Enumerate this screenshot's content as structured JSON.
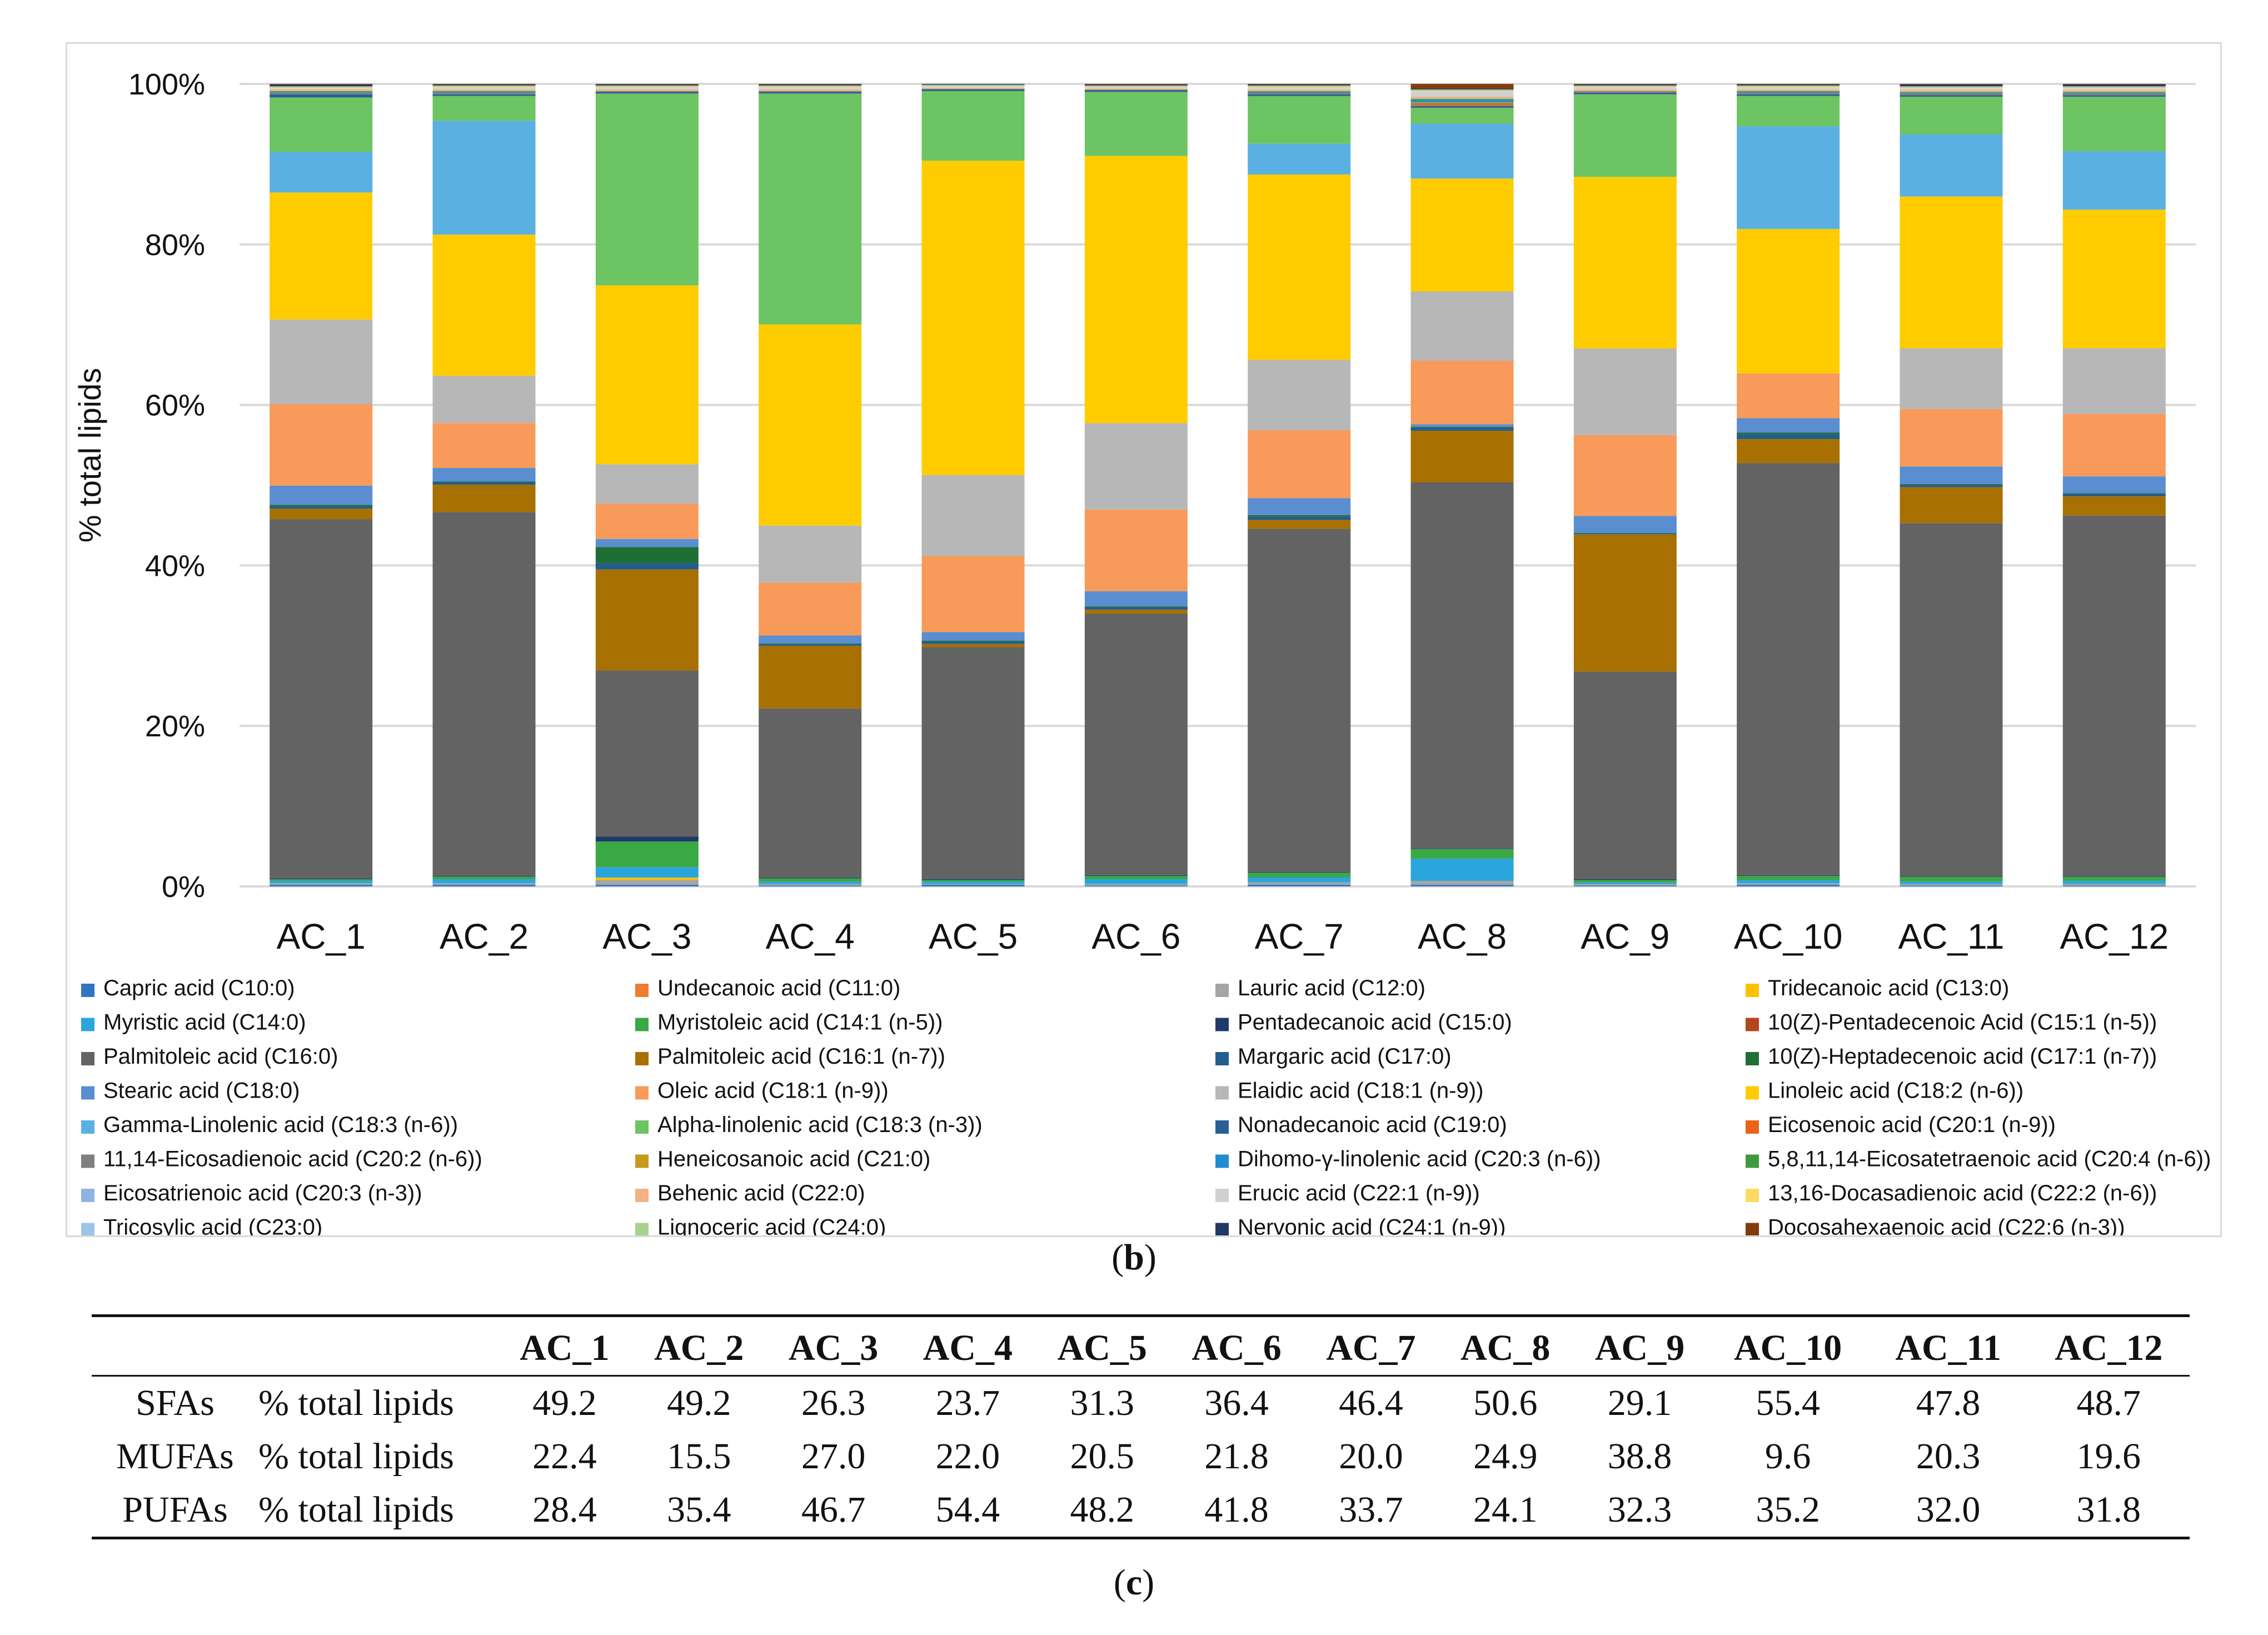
{
  "chart_data": {
    "type": "bar",
    "stacked": true,
    "percent": true,
    "caption": "b",
    "xlabel": "",
    "ylabel": "% total lipids",
    "ylim": [
      0,
      100
    ],
    "yticks": [
      "0%",
      "20%",
      "40%",
      "60%",
      "80%",
      "100%"
    ],
    "grid": true,
    "legend_position": "bottom",
    "categories": [
      "AC_1",
      "AC_2",
      "AC_3",
      "AC_4",
      "AC_5",
      "AC_6",
      "AC_7",
      "AC_8",
      "AC_9",
      "AC_10",
      "AC_11",
      "AC_12"
    ],
    "series": [
      {
        "name": "Capric acid (C10:0)",
        "color": "#2e75c6",
        "values": [
          0.2,
          0.2,
          0.2,
          0.1,
          0.2,
          0.1,
          0.2,
          0.2,
          0.1,
          0.2,
          0.1,
          0.1
        ]
      },
      {
        "name": "Undecanoic acid (C11:0)",
        "color": "#ed7d31",
        "values": [
          0.0,
          0.0,
          0.0,
          0.0,
          0.0,
          0.0,
          0.0,
          0.0,
          0.0,
          0.0,
          0.0,
          0.0
        ]
      },
      {
        "name": "Lauric acid (C12:0)",
        "color": "#a5a5a5",
        "values": [
          0.2,
          0.2,
          0.6,
          0.2,
          0.1,
          0.2,
          0.3,
          0.5,
          0.2,
          0.2,
          0.2,
          0.2
        ]
      },
      {
        "name": "Tridecanoic acid (C13:0)",
        "color": "#ffc000",
        "values": [
          0.0,
          0.0,
          0.3,
          0.0,
          0.0,
          0.0,
          0.0,
          0.0,
          0.0,
          0.0,
          0.0,
          0.0
        ]
      },
      {
        "name": "Myristic acid (C14:0)",
        "color": "#2aa6dc",
        "values": [
          0.3,
          0.5,
          1.3,
          0.3,
          0.3,
          0.6,
          0.6,
          2.8,
          0.2,
          0.4,
          0.3,
          0.4
        ]
      },
      {
        "name": "Myristoleic acid (C14:1 (n-5))",
        "color": "#3aa844",
        "values": [
          0.2,
          0.3,
          3.2,
          0.4,
          0.2,
          0.4,
          0.6,
          1.2,
          0.3,
          0.5,
          0.6,
          0.5
        ]
      },
      {
        "name": "Pentadecanoic acid (C15:0)",
        "color": "#1f3a68",
        "values": [
          0.1,
          0.1,
          0.6,
          0.1,
          0.1,
          0.1,
          0.1,
          0.1,
          0.1,
          0.1,
          0.1,
          0.1
        ]
      },
      {
        "name": "10(Z)-Pentadecenoic Acid (C15:1 (n-5))",
        "color": "#b5451b",
        "values": [
          0.0,
          0.0,
          0.0,
          0.0,
          0.0,
          0.0,
          0.0,
          0.0,
          0.0,
          0.0,
          0.0,
          0.0
        ]
      },
      {
        "name": "Palmitoleic acid (C16:0)",
        "color": "#636363",
        "values": [
          45.0,
          45.4,
          20.7,
          21.1,
          29.0,
          32.7,
          42.4,
          46.0,
          25.9,
          51.4,
          44.2,
          45.0
        ]
      },
      {
        "name": "Palmitoleic acid (C16:1 (n-7))",
        "color": "#a87000",
        "values": [
          1.3,
          3.4,
          12.6,
          7.8,
          0.4,
          0.5,
          1.1,
          6.5,
          17.1,
          3.0,
          4.5,
          2.4
        ]
      },
      {
        "name": "Margaric acid (C17:0)",
        "color": "#235d8c",
        "values": [
          0.3,
          0.3,
          0.8,
          0.2,
          0.3,
          0.3,
          0.4,
          0.4,
          0.1,
          0.6,
          0.3,
          0.3
        ]
      },
      {
        "name": "10(Z)-Heptadecenoic acid (C17:1 (n-7))",
        "color": "#1f6e34",
        "values": [
          0.2,
          0.1,
          2.0,
          0.1,
          0.1,
          0.1,
          0.2,
          0.1,
          0.1,
          0.2,
          0.1,
          0.1
        ]
      },
      {
        "name": "Stearic acid (C18:0)",
        "color": "#5a8ed0",
        "values": [
          2.4,
          1.7,
          1.0,
          1.0,
          1.1,
          1.9,
          2.1,
          0.3,
          2.1,
          1.8,
          2.2,
          2.1
        ]
      },
      {
        "name": "Oleic acid (C18:1 (n-9))",
        "color": "#f79a5a",
        "values": [
          10.2,
          5.6,
          4.4,
          6.6,
          9.5,
          10.2,
          8.4,
          8.0,
          10.1,
          5.6,
          7.2,
          7.8
        ]
      },
      {
        "name": "Elaidic acid (C18:1 (n-9))",
        "color": "#b7b7b7",
        "values": [
          10.6,
          5.9,
          4.9,
          7.1,
          10.1,
          10.8,
          8.7,
          8.7,
          10.8,
          0.0,
          7.6,
          8.2
        ]
      },
      {
        "name": "Linoleic acid (C18:2 (n-6))",
        "color": "#ffcc00",
        "values": [
          15.9,
          17.6,
          22.3,
          25.1,
          39.3,
          33.4,
          22.9,
          14.2,
          21.4,
          18.0,
          19.0,
          17.3
        ]
      },
      {
        "name": "Gamma-Linolenic acid (C18:3 (n-6))",
        "color": "#5bb0e2",
        "values": [
          5.1,
          14.2,
          0.0,
          0.0,
          0.0,
          0.0,
          3.8,
          6.9,
          0.0,
          12.8,
          7.8,
          7.3
        ]
      },
      {
        "name": "Alpha-linolenic acid (C18:3 (n-3))",
        "color": "#6cc463",
        "values": [
          6.8,
          3.1,
          23.9,
          28.8,
          8.7,
          8.0,
          5.9,
          2.0,
          10.3,
          3.8,
          4.7,
          6.8
        ]
      },
      {
        "name": "Nonadecanoic acid (C19:0)",
        "color": "#2b5f94",
        "values": [
          0.4,
          0.2,
          0.2,
          0.2,
          0.2,
          0.2,
          0.2,
          0.2,
          0.2,
          0.2,
          0.2,
          0.2
        ]
      },
      {
        "name": "Eicosenoic acid (C20:1 (n-9))",
        "color": "#e8641a",
        "values": [
          0.0,
          0.0,
          0.0,
          0.0,
          0.0,
          0.0,
          0.0,
          0.2,
          0.0,
          0.0,
          0.0,
          0.0
        ]
      },
      {
        "name": "11,14-Eicosadienoic acid (C20:2 (n-6))",
        "color": "#7f7f7f",
        "values": [
          0.2,
          0.2,
          0.1,
          0.1,
          0.1,
          0.1,
          0.2,
          0.2,
          0.2,
          0.2,
          0.2,
          0.2
        ]
      },
      {
        "name": "Heneicosanoic acid (C21:0)",
        "color": "#c79a1c",
        "values": [
          0.0,
          0.0,
          0.0,
          0.0,
          0.0,
          0.0,
          0.0,
          0.1,
          0.0,
          0.0,
          0.0,
          0.0
        ]
      },
      {
        "name": "Dihomo-γ-linolenic acid (C20:3 (n-6))",
        "color": "#1f8bd0",
        "values": [
          0.1,
          0.1,
          0.0,
          0.0,
          0.0,
          0.0,
          0.1,
          0.2,
          0.0,
          0.1,
          0.1,
          0.1
        ]
      },
      {
        "name": "5,8,11,14-Eicosatetraenoic acid (C20:4 (n-6))",
        "color": "#3f9a3f",
        "values": [
          0.1,
          0.1,
          0.0,
          0.0,
          0.0,
          0.0,
          0.1,
          0.2,
          0.0,
          0.1,
          0.1,
          0.1
        ]
      },
      {
        "name": "Eicosatrienoic acid (C20:3 (n-3))",
        "color": "#8fb4e3",
        "values": [
          0.0,
          0.0,
          0.0,
          0.0,
          0.0,
          0.0,
          0.0,
          0.1,
          0.0,
          0.0,
          0.0,
          0.0
        ]
      },
      {
        "name": "Behenic acid (C22:0)",
        "color": "#f4b183",
        "values": [
          0.2,
          0.2,
          0.2,
          0.2,
          0.1,
          0.1,
          0.2,
          0.2,
          0.2,
          0.2,
          0.2,
          0.2
        ]
      },
      {
        "name": "Erucic acid (C22:1 (n-9))",
        "color": "#d0d0d0",
        "values": [
          0.1,
          0.2,
          0.2,
          0.2,
          0.1,
          0.1,
          0.2,
          0.6,
          0.2,
          0.2,
          0.2,
          0.2
        ]
      },
      {
        "name": "13,16-Docasadienoic acid (C22:2 (n-6))",
        "color": "#ffd966",
        "values": [
          0.1,
          0.1,
          0.1,
          0.1,
          0.1,
          0.1,
          0.1,
          0.1,
          0.1,
          0.1,
          0.1,
          0.1
        ]
      },
      {
        "name": "Tricosylic acid (C23:0)",
        "color": "#9dc3e6",
        "values": [
          0.1,
          0.1,
          0.1,
          0.1,
          0.1,
          0.1,
          0.1,
          0.1,
          0.1,
          0.1,
          0.1,
          0.1
        ]
      },
      {
        "name": "Lignoceric acid (C24:0)",
        "color": "#a9d18e",
        "values": [
          0.1,
          0.1,
          0.1,
          0.1,
          0.1,
          0.1,
          0.1,
          0.1,
          0.1,
          0.1,
          0.1,
          0.1
        ]
      },
      {
        "name": "Nervonic acid (C24:1 (n-9))",
        "color": "#203864",
        "values": [
          0.2,
          0.1,
          0.1,
          0.1,
          0.1,
          0.1,
          0.1,
          0.1,
          0.1,
          0.1,
          0.2,
          0.2
        ]
      },
      {
        "name": "Docosahexaenoic acid (C22:6 (n-3))",
        "color": "#843c0c",
        "values": [
          0.1,
          0.1,
          0.1,
          0.1,
          0.0,
          0.1,
          0.1,
          0.6,
          0.1,
          0.1,
          0.1,
          0.1
        ]
      }
    ]
  },
  "table": {
    "caption": "c",
    "columns": [
      "AC_1",
      "AC_2",
      "AC_3",
      "AC_4",
      "AC_5",
      "AC_6",
      "AC_7",
      "AC_8",
      "AC_9",
      "AC_10",
      "AC_11",
      "AC_12"
    ],
    "rows": [
      {
        "label": "SFAs",
        "unit": "% total lipids",
        "values": [
          "49.2",
          "49.2",
          "26.3",
          "23.7",
          "31.3",
          "36.4",
          "46.4",
          "50.6",
          "29.1",
          "55.4",
          "47.8",
          "48.7"
        ]
      },
      {
        "label": "MUFAs",
        "unit": "% total lipids",
        "values": [
          "22.4",
          "15.5",
          "27.0",
          "22.0",
          "20.5",
          "21.8",
          "20.0",
          "24.9",
          "38.8",
          "9.6",
          "20.3",
          "19.6"
        ]
      },
      {
        "label": "PUFAs",
        "unit": "% total lipids",
        "values": [
          "28.4",
          "35.4",
          "46.7",
          "54.4",
          "48.2",
          "41.8",
          "33.7",
          "24.1",
          "32.3",
          "35.2",
          "32.0",
          "31.8"
        ]
      }
    ]
  }
}
